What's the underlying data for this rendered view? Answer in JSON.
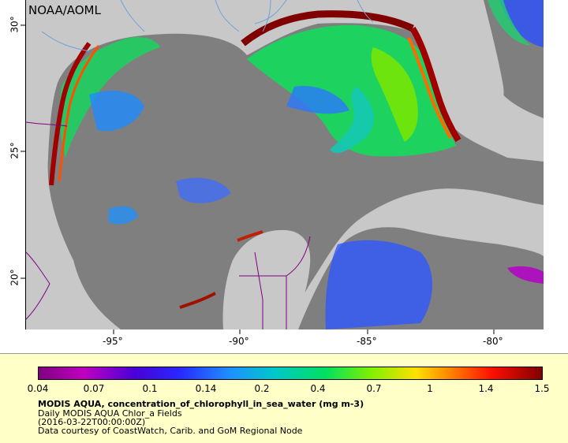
{
  "map": {
    "credit": "NOAA/AOML",
    "x_ticks": [
      "-95°",
      "-90°",
      "-85°",
      "-80°"
    ],
    "y_ticks": [
      "30°",
      "25°",
      "20°"
    ],
    "colors": {
      "land": "#c8c8c8",
      "no_data_ocean": "#7f7f7f",
      "coast_high": "#800000",
      "river": "#6fa0d8",
      "border": "#800080"
    }
  },
  "legend": {
    "ticks": [
      "0.04",
      "0.07",
      "0.1",
      "0.14",
      "0.2",
      "0.4",
      "0.7",
      "1",
      "1.4",
      "1.5"
    ],
    "title": "MODIS AQUA, concentration_of_chlorophyll_in_sea_water (mg m-3)",
    "dataset": "Daily MODIS AQUA Chlor_a Fields",
    "time": "(2016-03-22T00:00:00Z)",
    "courtesy": "Data courtesy of CoastWatch, Carib. and GoM Regional Node"
  }
}
